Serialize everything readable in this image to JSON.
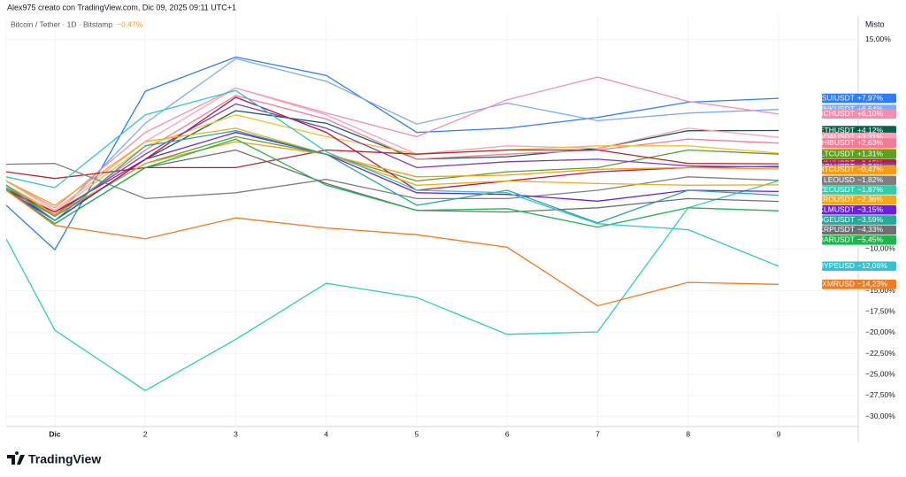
{
  "chart_data": {
    "type": "line",
    "caption": "Alex975 creato con TradingView.com, Dic 09, 2025 09:11 UTC+1",
    "title": "Bitcoin / Tether · 1D · Bitstamp",
    "title_change": "−0,47%",
    "scale_label": "Misto",
    "brand": "TradingView",
    "categories": [
      null,
      "Dic",
      "2",
      "3",
      "4",
      "5",
      "6",
      "7",
      "8",
      "9"
    ],
    "ylim": [
      -31.2,
      17.8
    ],
    "yticks": [
      {
        "value": 15,
        "label": "15,00%"
      },
      {
        "value": -10,
        "label": "−10,00%"
      },
      {
        "value": -15,
        "label": "−15,00%"
      },
      {
        "value": -17.5,
        "label": "−17,50%"
      },
      {
        "value": -20,
        "label": "−20,00%"
      },
      {
        "value": -22.5,
        "label": "−22,50%"
      },
      {
        "value": -25,
        "label": "−25,00%"
      },
      {
        "value": -27.5,
        "label": "−27,50%"
      },
      {
        "value": -30,
        "label": "−30,00%"
      }
    ],
    "grid": true,
    "series": [
      {
        "name": "SUIUSDT",
        "color": "#2f7cf6",
        "values": [
          -4.8,
          -10.1,
          8.8,
          12.9,
          10.7,
          3.9,
          4.4,
          5.7,
          7.5,
          7.97
        ],
        "value_labels": [
          "−4,80%",
          "−10,10%",
          "+8,80%",
          "+12,90%",
          "+10,70%",
          "+3,90%",
          "+4,40%",
          "+5,70%",
          "+7,50%",
          "+7,97%"
        ]
      },
      {
        "name": "LINKUSDT",
        "color": "#7fa9f3",
        "values": [
          -2.4,
          -6.1,
          5.0,
          12.7,
          10.0,
          4.9,
          7.4,
          5.3,
          6.2,
          6.64
        ],
        "value_labels": [
          "−2,40%",
          "−6,10%",
          "+5,00%",
          "+12,70%",
          "+10,00%",
          "+4,90%",
          "+7,40%",
          "+5,30%",
          "+6,20%",
          "+6,64%"
        ]
      },
      {
        "name": "BCHUSDT",
        "color": "#f28fae",
        "values": [
          -1.9,
          -5.1,
          3.9,
          9.2,
          6.2,
          3.4,
          7.8,
          10.5,
          7.6,
          6.1
        ],
        "value_labels": [
          "−1,90%",
          "−5,10%",
          "+3,90%",
          "+9,20%",
          "+6,20%",
          "+3,40%",
          "+7,80%",
          "+10,50%",
          "+7,60%",
          "+6,10%"
        ]
      },
      {
        "name": "ETHUSDT",
        "color": "#0e5e4c",
        "values": [
          -2.7,
          -6.6,
          0.7,
          6.5,
          5.0,
          0.7,
          1.0,
          2.0,
          4.1,
          4.12
        ],
        "value_labels": [
          "−2,70%",
          "−6,60%",
          "+0,70%",
          "+6,50%",
          "+5,00%",
          "+0,70%",
          "+1,00%",
          "+2,00%",
          "+4,10%",
          "+4,12%"
        ]
      },
      {
        "name": "ADAUSDT",
        "color": "#f6a3b8",
        "values": [
          -1.9,
          -5.4,
          2.8,
          9.2,
          6.0,
          1.3,
          2.3,
          2.0,
          4.4,
          3.31
        ],
        "value_labels": [
          "−1,90%",
          "−5,40%",
          "+2,80%",
          "+9,20%",
          "+6,00%",
          "+1,30%",
          "+2,30%",
          "+2,00%",
          "+4,40%",
          "+3,31%"
        ]
      },
      {
        "name": "SHIBUSDT",
        "color": "#ef7d99",
        "values": [
          -3.0,
          -6.1,
          1.8,
          8.3,
          5.5,
          0.7,
          1.3,
          1.8,
          3.1,
          2.63
        ],
        "value_labels": [
          "−3,00%",
          "−6,10%",
          "+1,80%",
          "+8,30%",
          "+5,50%",
          "+0,70%",
          "+1,30%",
          "+1,80%",
          "+3,10%",
          "+2,63%"
        ]
      },
      {
        "name": "BNBUSDT",
        "color": "#f6bd33",
        "values": [
          -2.4,
          -5.6,
          2.3,
          6.0,
          3.4,
          1.3,
          1.8,
          2.3,
          2.3,
          1.43
        ],
        "value_labels": [
          "−2,40%",
          "−5,60%",
          "+2,30%",
          "+6,00%",
          "+3,40%",
          "+1,30%",
          "+1,80%",
          "+2,30%",
          "+2,30%",
          "+1,43%"
        ]
      },
      {
        "name": "LTCUSDT",
        "color": "#5d9e26",
        "values": [
          -2.7,
          -6.1,
          0.2,
          3.4,
          1.3,
          -1.9,
          -0.8,
          -0.3,
          1.8,
          1.31
        ],
        "value_labels": [
          "−2,70%",
          "−6,10%",
          "+0,20%",
          "+3,40%",
          "+1,30%",
          "−1,90%",
          "−0,80%",
          "−0,30%",
          "+1,80%",
          "+1,31%"
        ]
      },
      {
        "name": "AVAXUSDT",
        "color": "#b3262e",
        "values": [
          -0.8,
          -1.6,
          -0.3,
          -0.3,
          1.8,
          1.3,
          1.8,
          1.8,
          0.2,
          0.15
        ],
        "value_labels": [
          "−0,80%",
          "−1,60%",
          "−0,30%",
          "−0,30%",
          "+1,80%",
          "+1,30%",
          "+1,80%",
          "+1,80%",
          "+0,20%",
          "+0,15%"
        ]
      },
      {
        "name": "TRXUSDT",
        "color": "#b5173f",
        "values": [
          -3.0,
          -5.6,
          0.7,
          8.1,
          3.9,
          -3.0,
          -1.9,
          -0.8,
          -0.3,
          -0.14
        ],
        "value_labels": [
          "−3,00%",
          "−5,60%",
          "+0,70%",
          "+8,10%",
          "+3,90%",
          "−3,00%",
          "−1,90%",
          "−0,80%",
          "−0,30%",
          "−0,14%"
        ]
      },
      {
        "name": "SOLUSDT",
        "color": "#7b3db5",
        "values": [
          -2.4,
          -5.9,
          1.3,
          7.3,
          4.4,
          -0.3,
          0.4,
          0.7,
          -0.1,
          -0.24
        ],
        "value_labels": [
          "−2,40%",
          "−5,90%",
          "+1,30%",
          "+7,30%",
          "+4,40%",
          "−0,30%",
          "+0,40%",
          "+0,70%",
          "−0,10%",
          "−0,24%"
        ]
      },
      {
        "name": "BTCUSDT",
        "color": "#f39c16",
        "values": [
          -2.4,
          -5.9,
          0.2,
          2.8,
          1.3,
          -1.4,
          -1.2,
          -0.5,
          -0.3,
          -0.47
        ],
        "value_labels": [
          "−2,40%",
          "−5,90%",
          "+0,20%",
          "+2,80%",
          "+1,30%",
          "−1,40%",
          "−1,20%",
          "−0,50%",
          "−0,30%",
          "−0,47%"
        ]
      },
      {
        "name": "LEOUSD",
        "color": "#7f7f7f",
        "values": [
          0.1,
          0.2,
          -4.0,
          -3.3,
          -1.7,
          -4.0,
          -4.0,
          -3.0,
          -1.4,
          -1.82
        ],
        "value_labels": [
          "+0,10%",
          "+0,20%",
          "−4,00%",
          "−3,30%",
          "−1,70%",
          "−4,00%",
          "−4,00%",
          "−3,00%",
          "−1,40%",
          "−1,82%"
        ]
      },
      {
        "name": "ZECUSDT",
        "color": "#2fcfae",
        "values": [
          -8.8,
          -19.7,
          -26.9,
          -20.8,
          -14.1,
          -15.8,
          -20.2,
          -19.9,
          -5.1,
          -1.87
        ],
        "value_labels": [
          "−8,80%",
          "−19,70%",
          "−26,90%",
          "−20,80%",
          "−14,10%",
          "−15,80%",
          "−20,20%",
          "−19,90%",
          "−5,10%",
          "−1,87%"
        ]
      },
      {
        "name": "CROUSDT",
        "color": "#efaa1c",
        "values": [
          -1.9,
          -4.8,
          2.8,
          4.4,
          1.3,
          -2.4,
          -1.9,
          -2.2,
          -2.4,
          -2.36
        ],
        "value_labels": [
          "−1,90%",
          "−4,80%",
          "+2,80%",
          "+4,40%",
          "+1,30%",
          "−2,40%",
          "−1,90%",
          "−2,20%",
          "−2,40%",
          "−2,36%"
        ]
      },
      {
        "name": "XLMUSDT",
        "color": "#6a22d8",
        "values": [
          -3.0,
          -6.6,
          0.7,
          3.9,
          1.3,
          -3.3,
          -3.5,
          -4.3,
          -3.0,
          -3.15
        ],
        "value_labels": [
          "−3,00%",
          "−6,60%",
          "+0,70%",
          "+3,90%",
          "+1,30%",
          "−3,30%",
          "−3,50%",
          "−4,30%",
          "−3,00%",
          "−3,15%"
        ]
      },
      {
        "name": "DOGEUSDT",
        "color": "#25a99a",
        "values": [
          -2.4,
          -6.6,
          2.3,
          4.1,
          1.3,
          -4.8,
          -3.0,
          -6.9,
          -3.0,
          -3.59
        ],
        "value_labels": [
          "−2,40%",
          "−6,60%",
          "+2,30%",
          "+4,10%",
          "+1,30%",
          "−4,80%",
          "−3,00%",
          "−6,90%",
          "−3,00%",
          "−3,59%"
        ]
      },
      {
        "name": "XRPUSDT",
        "color": "#6f6f6f",
        "values": [
          -2.9,
          -7.0,
          -0.3,
          1.8,
          -2.2,
          -5.4,
          -5.6,
          -5.1,
          -4.0,
          -4.33
        ],
        "value_labels": [
          "−2,90%",
          "−7,00%",
          "−0,30%",
          "+1,80%",
          "−2,20%",
          "−5,40%",
          "−5,60%",
          "−5,10%",
          "−4,00%",
          "−4,33%"
        ]
      },
      {
        "name": "HBARUSDT",
        "color": "#21b34d",
        "values": [
          -3.0,
          -7.0,
          -0.3,
          3.1,
          -2.4,
          -5.4,
          -5.2,
          -7.4,
          -5.1,
          -5.45
        ],
        "value_labels": [
          "−3,00%",
          "−7,00%",
          "−0,30%",
          "+3,10%",
          "−2,40%",
          "−5,40%",
          "−5,20%",
          "−7,40%",
          "−5,10%",
          "−5,45%"
        ]
      },
      {
        "name": "HYPEUSD",
        "color": "#31c3d2",
        "values": [
          -1.4,
          -2.7,
          6.0,
          8.9,
          1.6,
          -3.0,
          -3.3,
          -7.0,
          -7.7,
          -12.06
        ],
        "value_labels": [
          "−1,40%",
          "−2,70%",
          "+6,00%",
          "+8,90%",
          "+1,60%",
          "−3,00%",
          "−3,30%",
          "−7,00%",
          "−7,70%",
          "−12,06%"
        ]
      },
      {
        "name": "XMRUSD",
        "color": "#f27a1f",
        "values": [
          -3.0,
          -7.2,
          -8.8,
          -6.3,
          -7.5,
          -8.3,
          -9.8,
          -16.8,
          -14.0,
          -14.23
        ],
        "value_labels": [
          "−3,00%",
          "−7,20%",
          "−8,80%",
          "−6,30%",
          "−7,50%",
          "−8,30%",
          "−9,80%",
          "−16,80%",
          "−14,00%",
          "−14,23%"
        ]
      }
    ]
  }
}
